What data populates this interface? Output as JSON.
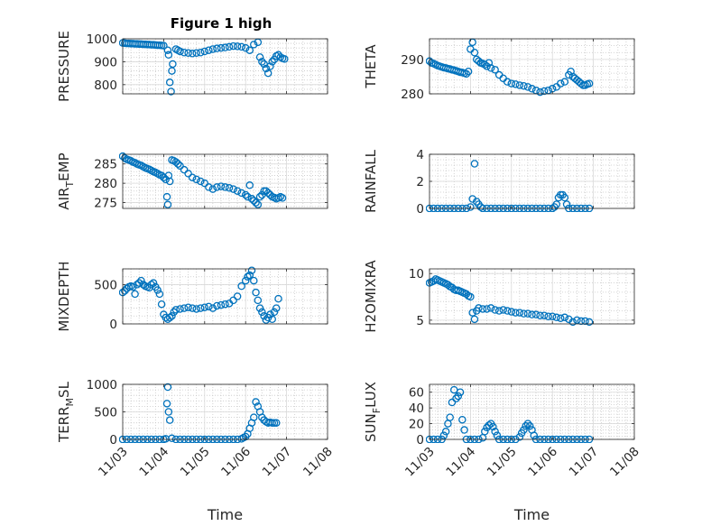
{
  "figure": {
    "title": "Figure 1 high"
  },
  "colors": {
    "marker": "#0072BD",
    "axis": "#262626",
    "grid": "#d9d9d9",
    "minor_grid": "#c8c8c8"
  },
  "chart_data": [
    {
      "type": "scatter",
      "ylabel": "PRESSURE",
      "ylim": [
        760,
        1000
      ],
      "yticks": [
        800,
        900,
        1000
      ],
      "xlim": [
        0,
        5
      ],
      "xticklabels": [],
      "grid": true,
      "minor_grid": true,
      "series": [
        {
          "x": [
            0.0,
            0.05,
            0.1,
            0.15,
            0.2,
            0.25,
            0.3,
            0.35,
            0.4,
            0.45,
            0.5,
            0.55,
            0.6,
            0.65,
            0.7,
            0.75,
            0.8,
            0.85,
            0.9,
            0.95,
            1.0,
            1.1,
            1.12,
            1.15,
            1.18,
            1.2,
            1.22,
            1.3,
            1.35,
            1.4,
            1.5,
            1.6,
            1.7,
            1.8,
            1.9,
            2.0,
            2.1,
            2.2,
            2.3,
            2.4,
            2.5,
            2.6,
            2.7,
            2.8,
            2.9,
            3.0,
            3.1,
            3.2,
            3.3,
            3.35,
            3.4,
            3.45,
            3.5,
            3.55,
            3.6,
            3.65,
            3.7,
            3.75,
            3.8,
            3.85,
            3.9,
            3.95
          ],
          "y": [
            982,
            981,
            980,
            980,
            979,
            979,
            978,
            978,
            977,
            977,
            976,
            976,
            975,
            975,
            974,
            974,
            973,
            972,
            972,
            971,
            970,
            950,
            930,
            810,
            770,
            860,
            890,
            955,
            950,
            945,
            940,
            938,
            936,
            938,
            940,
            945,
            950,
            955,
            958,
            960,
            962,
            965,
            968,
            967,
            965,
            960,
            950,
            975,
            985,
            920,
            900,
            890,
            870,
            850,
            880,
            900,
            910,
            925,
            930,
            920,
            915,
            912
          ]
        }
      ]
    },
    {
      "type": "scatter",
      "ylabel": "THETA",
      "ylim": [
        280,
        296
      ],
      "yticks": [
        280,
        290
      ],
      "xlim": [
        0,
        5
      ],
      "xticklabels": [],
      "grid": true,
      "minor_grid": true,
      "series": [
        {
          "x": [
            0.0,
            0.05,
            0.1,
            0.15,
            0.2,
            0.25,
            0.3,
            0.35,
            0.4,
            0.45,
            0.5,
            0.55,
            0.6,
            0.65,
            0.7,
            0.75,
            0.8,
            0.85,
            0.9,
            0.95,
            1.0,
            1.05,
            1.1,
            1.15,
            1.2,
            1.25,
            1.3,
            1.35,
            1.4,
            1.45,
            1.5,
            1.6,
            1.7,
            1.8,
            1.9,
            2.0,
            2.1,
            2.2,
            2.3,
            2.4,
            2.5,
            2.6,
            2.7,
            2.8,
            2.9,
            3.0,
            3.1,
            3.2,
            3.3,
            3.4,
            3.45,
            3.5,
            3.55,
            3.6,
            3.65,
            3.7,
            3.75,
            3.8,
            3.85,
            3.9
          ],
          "y": [
            289.5,
            289.0,
            288.8,
            288.5,
            288.2,
            288.0,
            287.8,
            287.6,
            287.5,
            287.3,
            287.2,
            287.0,
            286.9,
            286.7,
            286.5,
            286.3,
            286.2,
            286.0,
            285.8,
            286.5,
            293.0,
            295.0,
            292.0,
            290.0,
            289.5,
            289.0,
            288.8,
            288.5,
            288.0,
            289.0,
            287.5,
            287.0,
            285.5,
            284.5,
            283.5,
            283.0,
            282.8,
            282.5,
            282.3,
            282.0,
            281.5,
            281.0,
            280.5,
            280.8,
            281.0,
            281.5,
            282.0,
            283.0,
            283.5,
            285.5,
            286.5,
            285.0,
            284.5,
            284.0,
            283.5,
            283.0,
            282.5,
            282.5,
            282.8,
            283.0
          ]
        }
      ]
    },
    {
      "type": "scatter",
      "ylabel": "AIR_TEMP",
      "ylim": [
        273.5,
        287.5
      ],
      "yticks": [
        275,
        280,
        285
      ],
      "xlim": [
        0,
        5
      ],
      "xticklabels": [],
      "grid": true,
      "minor_grid": true,
      "series": [
        {
          "x": [
            0.0,
            0.05,
            0.1,
            0.15,
            0.2,
            0.25,
            0.3,
            0.35,
            0.4,
            0.45,
            0.5,
            0.55,
            0.6,
            0.65,
            0.7,
            0.75,
            0.8,
            0.85,
            0.9,
            0.95,
            1.0,
            1.05,
            1.08,
            1.1,
            1.12,
            1.15,
            1.2,
            1.25,
            1.3,
            1.35,
            1.4,
            1.5,
            1.6,
            1.7,
            1.8,
            1.9,
            2.0,
            2.1,
            2.2,
            2.3,
            2.4,
            2.5,
            2.6,
            2.7,
            2.8,
            2.9,
            3.0,
            3.05,
            3.1,
            3.15,
            3.2,
            3.25,
            3.3,
            3.35,
            3.4,
            3.45,
            3.5,
            3.55,
            3.6,
            3.65,
            3.7,
            3.75,
            3.8,
            3.85,
            3.9
          ],
          "y": [
            287.0,
            286.5,
            286.2,
            286.0,
            285.8,
            285.5,
            285.3,
            285.0,
            284.8,
            284.6,
            284.3,
            284.0,
            283.8,
            283.6,
            283.3,
            283.0,
            282.8,
            282.5,
            282.2,
            282.0,
            281.5,
            281.0,
            276.5,
            274.5,
            282.0,
            280.5,
            286.0,
            285.8,
            285.5,
            285.0,
            284.5,
            283.5,
            282.5,
            281.5,
            281.0,
            280.5,
            280.0,
            279.0,
            278.5,
            279.0,
            279.2,
            279.0,
            278.8,
            278.5,
            278.0,
            277.5,
            277.0,
            276.5,
            279.5,
            276.0,
            275.5,
            275.0,
            274.5,
            276.5,
            277.0,
            278.0,
            278.0,
            277.5,
            277.0,
            276.5,
            276.3,
            276.0,
            276.2,
            276.5,
            276.2
          ]
        }
      ]
    },
    {
      "type": "scatter",
      "ylabel": "RAINFALL",
      "ylim": [
        0,
        4
      ],
      "yticks": [
        0,
        2,
        4
      ],
      "xlim": [
        0,
        5
      ],
      "xticklabels": [],
      "grid": true,
      "minor_grid": true,
      "series": [
        {
          "x": [
            0.0,
            0.1,
            0.2,
            0.3,
            0.4,
            0.5,
            0.6,
            0.7,
            0.8,
            0.9,
            1.0,
            1.05,
            1.1,
            1.15,
            1.2,
            1.25,
            1.3,
            1.4,
            1.5,
            1.6,
            1.7,
            1.8,
            1.9,
            2.0,
            2.1,
            2.2,
            2.3,
            2.4,
            2.5,
            2.6,
            2.7,
            2.8,
            2.9,
            3.0,
            3.05,
            3.1,
            3.15,
            3.2,
            3.25,
            3.3,
            3.35,
            3.4,
            3.5,
            3.6,
            3.7,
            3.8,
            3.9
          ],
          "y": [
            0,
            0,
            0,
            0,
            0,
            0,
            0,
            0,
            0,
            0,
            0.1,
            0.7,
            3.3,
            0.5,
            0.3,
            0.1,
            0,
            0,
            0,
            0,
            0,
            0,
            0,
            0,
            0,
            0,
            0,
            0,
            0,
            0,
            0,
            0,
            0,
            0,
            0.1,
            0.3,
            0.8,
            1.0,
            1.0,
            0.8,
            0.3,
            0,
            0,
            0,
            0,
            0,
            0
          ]
        }
      ]
    },
    {
      "type": "scatter",
      "ylabel": "MIXDEPTH",
      "ylim": [
        0,
        700
      ],
      "yticks": [
        0,
        500
      ],
      "xlim": [
        0,
        5
      ],
      "xticklabels": [],
      "grid": true,
      "minor_grid": true,
      "series": [
        {
          "x": [
            0.0,
            0.05,
            0.1,
            0.15,
            0.2,
            0.25,
            0.3,
            0.35,
            0.4,
            0.45,
            0.5,
            0.55,
            0.6,
            0.65,
            0.7,
            0.75,
            0.8,
            0.85,
            0.9,
            0.95,
            1.0,
            1.05,
            1.1,
            1.15,
            1.2,
            1.25,
            1.3,
            1.4,
            1.5,
            1.6,
            1.7,
            1.8,
            1.9,
            2.0,
            2.1,
            2.2,
            2.3,
            2.4,
            2.5,
            2.6,
            2.7,
            2.8,
            2.9,
            3.0,
            3.05,
            3.1,
            3.15,
            3.2,
            3.25,
            3.3,
            3.35,
            3.4,
            3.45,
            3.5,
            3.55,
            3.6,
            3.65,
            3.7,
            3.75,
            3.8
          ],
          "y": [
            400,
            420,
            450,
            470,
            480,
            470,
            380,
            500,
            520,
            550,
            500,
            480,
            470,
            460,
            500,
            520,
            470,
            430,
            380,
            250,
            120,
            80,
            60,
            80,
            100,
            150,
            180,
            190,
            200,
            210,
            200,
            190,
            200,
            210,
            220,
            200,
            230,
            240,
            250,
            260,
            300,
            350,
            480,
            550,
            600,
            620,
            680,
            550,
            400,
            300,
            200,
            150,
            100,
            50,
            80,
            120,
            60,
            150,
            200,
            320
          ]
        }
      ]
    },
    {
      "type": "scatter",
      "ylabel": "H2OMIXRA",
      "ylim": [
        4.6,
        10.5
      ],
      "yticks": [
        5,
        10
      ],
      "xlim": [
        0,
        5
      ],
      "xticklabels": [],
      "grid": true,
      "minor_grid": true,
      "series": [
        {
          "x": [
            0.0,
            0.05,
            0.1,
            0.15,
            0.2,
            0.25,
            0.3,
            0.35,
            0.4,
            0.45,
            0.5,
            0.55,
            0.6,
            0.65,
            0.7,
            0.75,
            0.8,
            0.85,
            0.9,
            0.95,
            1.0,
            1.05,
            1.1,
            1.15,
            1.2,
            1.3,
            1.4,
            1.5,
            1.6,
            1.7,
            1.8,
            1.9,
            2.0,
            2.1,
            2.2,
            2.3,
            2.4,
            2.5,
            2.6,
            2.7,
            2.8,
            2.9,
            3.0,
            3.1,
            3.2,
            3.3,
            3.4,
            3.5,
            3.6,
            3.7,
            3.8,
            3.9
          ],
          "y": [
            9.0,
            9.1,
            9.2,
            9.4,
            9.3,
            9.2,
            9.1,
            9.0,
            8.9,
            8.8,
            8.6,
            8.5,
            8.3,
            8.2,
            8.2,
            8.1,
            8.0,
            7.9,
            7.8,
            7.6,
            7.5,
            5.8,
            5.1,
            6.0,
            6.3,
            6.2,
            6.2,
            6.3,
            6.1,
            6.0,
            6.1,
            6.0,
            5.9,
            5.8,
            5.8,
            5.7,
            5.7,
            5.6,
            5.6,
            5.5,
            5.5,
            5.4,
            5.4,
            5.3,
            5.2,
            5.3,
            5.1,
            4.8,
            5.0,
            4.9,
            4.9,
            4.8
          ]
        }
      ]
    },
    {
      "type": "scatter",
      "ylabel": "TERR_MSL",
      "ylim": [
        0,
        1000
      ],
      "yticks": [
        0,
        500,
        1000
      ],
      "xlim": [
        0,
        5
      ],
      "xticklabels": [
        "11/03",
        "11/04",
        "11/05",
        "11/06",
        "11/07",
        "11/08"
      ],
      "xlabel": "Time",
      "grid": true,
      "minor_grid": true,
      "series": [
        {
          "x": [
            0.0,
            0.1,
            0.2,
            0.3,
            0.4,
            0.5,
            0.6,
            0.7,
            0.8,
            0.9,
            1.0,
            1.05,
            1.08,
            1.1,
            1.12,
            1.15,
            1.2,
            1.3,
            1.4,
            1.5,
            1.6,
            1.7,
            1.8,
            1.9,
            2.0,
            2.1,
            2.2,
            2.3,
            2.4,
            2.5,
            2.6,
            2.7,
            2.8,
            2.9,
            2.95,
            3.0,
            3.05,
            3.1,
            3.15,
            3.2,
            3.25,
            3.3,
            3.35,
            3.4,
            3.45,
            3.5,
            3.55,
            3.6,
            3.65,
            3.7,
            3.75
          ],
          "y": [
            0,
            0,
            0,
            0,
            0,
            0,
            0,
            0,
            0,
            0,
            0,
            10,
            650,
            950,
            500,
            350,
            20,
            0,
            0,
            0,
            0,
            0,
            0,
            0,
            0,
            0,
            0,
            0,
            0,
            0,
            0,
            0,
            0,
            10,
            30,
            50,
            100,
            200,
            300,
            400,
            680,
            600,
            500,
            400,
            350,
            320,
            300,
            310,
            300,
            300,
            300
          ]
        }
      ]
    },
    {
      "type": "scatter",
      "ylabel": "SUN_FLUX",
      "ylim": [
        0,
        70
      ],
      "yticks": [
        0,
        20,
        40,
        60
      ],
      "xlim": [
        0,
        5
      ],
      "xticklabels": [
        "11/03",
        "11/04",
        "11/05",
        "11/06",
        "11/07",
        "11/08"
      ],
      "xlabel": "Time",
      "grid": true,
      "minor_grid": true,
      "series": [
        {
          "x": [
            0.0,
            0.1,
            0.2,
            0.3,
            0.35,
            0.4,
            0.45,
            0.5,
            0.55,
            0.6,
            0.65,
            0.7,
            0.75,
            0.8,
            0.85,
            0.9,
            1.0,
            1.1,
            1.2,
            1.3,
            1.35,
            1.4,
            1.45,
            1.5,
            1.55,
            1.6,
            1.65,
            1.7,
            1.8,
            1.9,
            2.0,
            2.1,
            2.2,
            2.25,
            2.3,
            2.35,
            2.4,
            2.45,
            2.5,
            2.55,
            2.6,
            2.7,
            2.8,
            2.9,
            3.0,
            3.1,
            3.2,
            3.3,
            3.4,
            3.5,
            3.6,
            3.7,
            3.8,
            3.9
          ],
          "y": [
            0,
            0,
            0,
            0,
            5,
            10,
            20,
            28,
            47,
            63,
            52,
            55,
            60,
            25,
            12,
            0,
            0,
            0,
            0,
            2,
            10,
            15,
            18,
            20,
            16,
            10,
            5,
            0,
            0,
            0,
            0,
            0,
            3,
            8,
            12,
            17,
            20,
            17,
            12,
            5,
            0,
            0,
            0,
            0,
            0,
            0,
            0,
            0,
            0,
            0,
            0,
            0,
            0,
            0
          ]
        }
      ]
    }
  ]
}
